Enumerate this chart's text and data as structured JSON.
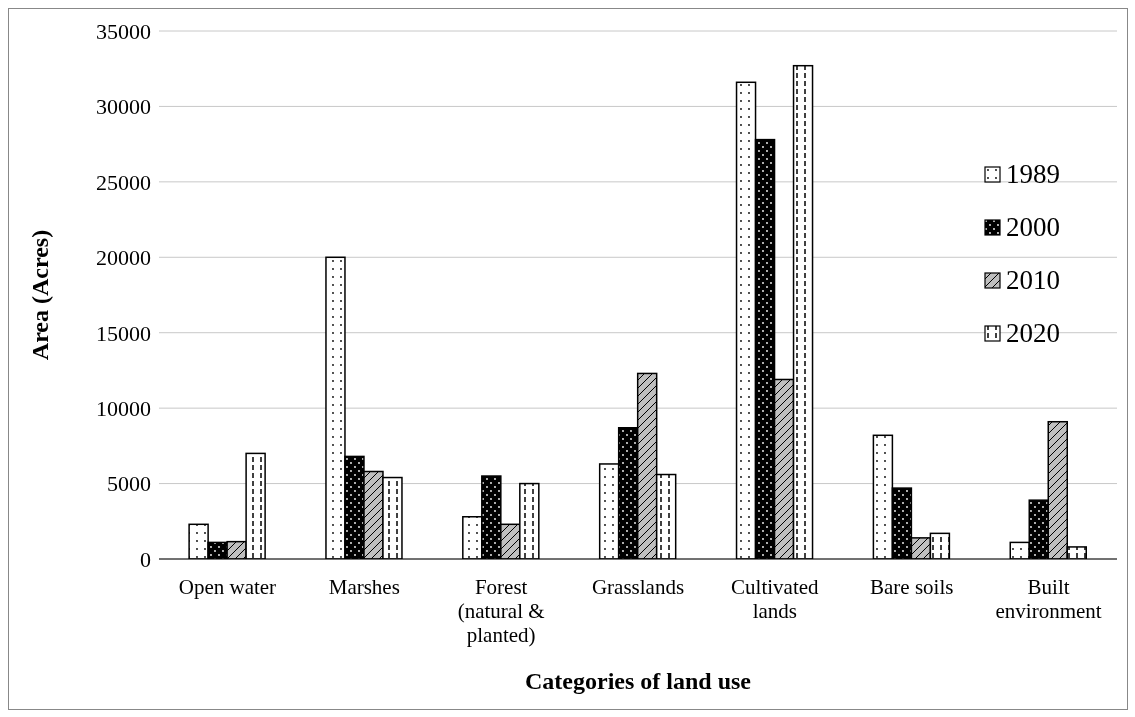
{
  "chart_data": {
    "type": "bar",
    "xlabel": "Categories of land use",
    "ylabel": "Area (Acres)",
    "categories": [
      "Open water",
      "Marshes",
      "Forest (natural & planted)",
      "Grasslands",
      "Cultivated lands",
      "Bare soils",
      "Built environment"
    ],
    "series": [
      {
        "name": "1989",
        "color": "#ffffff",
        "values": [
          2300,
          20000,
          2800,
          6300,
          31600,
          8200,
          1100
        ]
      },
      {
        "name": "2000",
        "color": "#000000",
        "values": [
          1100,
          6800,
          5500,
          8700,
          27800,
          4700,
          3900
        ]
      },
      {
        "name": "2010",
        "color": "#bfbfbf",
        "values": [
          1150,
          5800,
          2300,
          12300,
          11900,
          1400,
          9100
        ]
      },
      {
        "name": "2020",
        "color": "#ffffff",
        "values": [
          7000,
          5400,
          5000,
          5600,
          32700,
          1700,
          800
        ]
      }
    ],
    "ylim": [
      0,
      35000
    ],
    "yticks": [
      0,
      5000,
      10000,
      15000,
      20000,
      25000,
      30000,
      35000
    ],
    "grid": "y",
    "legend": "right"
  }
}
